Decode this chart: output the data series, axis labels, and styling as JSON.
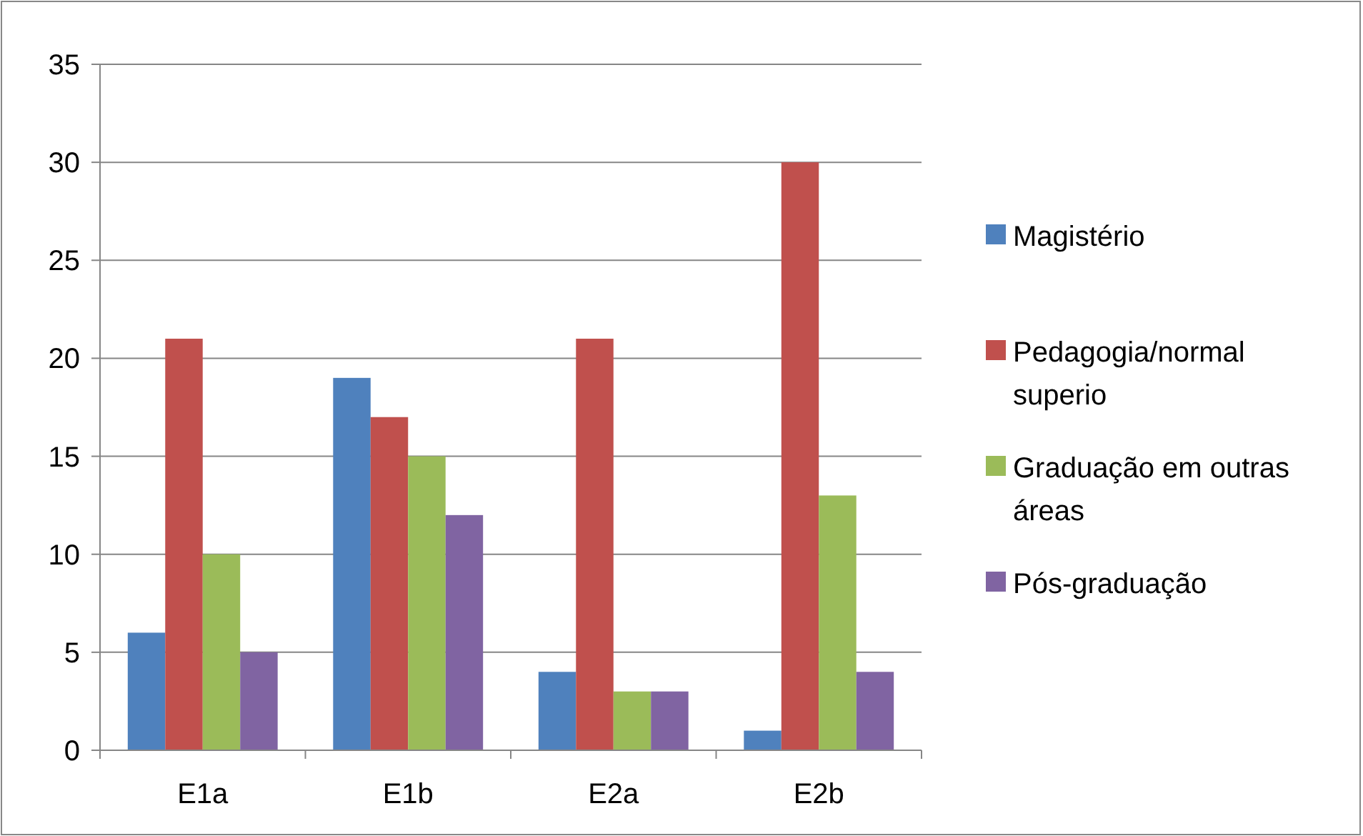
{
  "chart_data": {
    "type": "bar",
    "categories": [
      "E1a",
      "E1b",
      "E2a",
      "E2b"
    ],
    "series": [
      {
        "name": "Magistério",
        "color": "#4f81bd",
        "values": [
          6,
          19,
          4,
          1
        ]
      },
      {
        "name": "Pedagogia/normal superio",
        "color": "#c0504d",
        "values": [
          21,
          17,
          21,
          30
        ]
      },
      {
        "name": "Graduação em outras áreas",
        "color": "#9bbb59",
        "values": [
          10,
          15,
          3,
          13
        ]
      },
      {
        "name": "Pós-graduação",
        "color": "#8064a2",
        "values": [
          5,
          12,
          3,
          4
        ]
      }
    ],
    "ylim": [
      0,
      35
    ],
    "yticks": [
      0,
      5,
      10,
      15,
      20,
      25,
      30,
      35
    ],
    "grid": "y",
    "legend": "right"
  }
}
